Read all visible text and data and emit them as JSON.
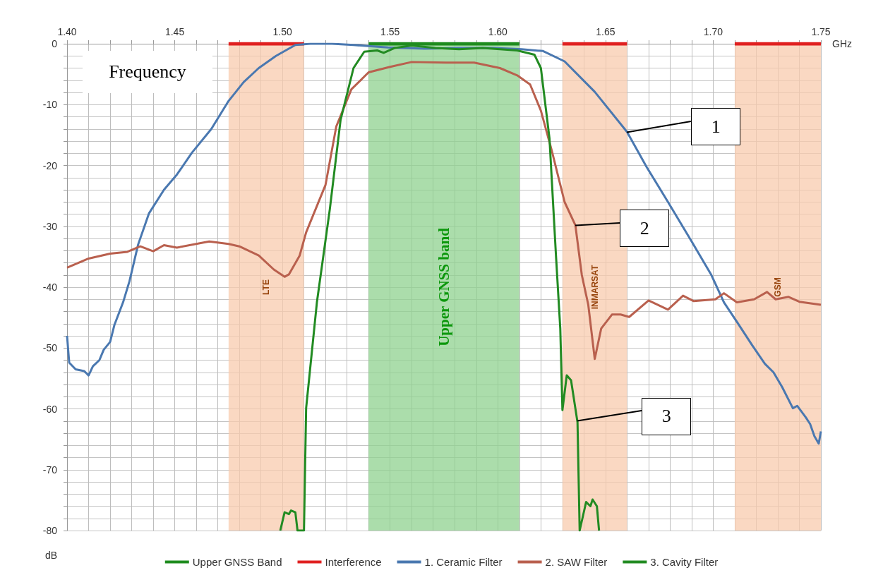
{
  "chart_data": {
    "type": "line",
    "xlabel": "GHz",
    "ylabel": "dB",
    "xlim": [
      1.4,
      1.75
    ],
    "ylim": [
      -80,
      0
    ],
    "xticks": [
      {
        "value": 1.4,
        "label": "1.40"
      },
      {
        "value": 1.41,
        "label": null
      },
      {
        "value": 1.42,
        "label": null
      },
      {
        "value": 1.43,
        "label": null
      },
      {
        "value": 1.44,
        "label": null
      },
      {
        "value": 1.45,
        "label": "1.45"
      },
      {
        "value": 1.46,
        "label": null
      },
      {
        "value": 1.47,
        "label": null
      },
      {
        "value": 1.48,
        "label": null
      },
      {
        "value": 1.49,
        "label": null
      },
      {
        "value": 1.5,
        "label": "1.50"
      },
      {
        "value": 1.51,
        "label": null
      },
      {
        "value": 1.52,
        "label": null
      },
      {
        "value": 1.53,
        "label": null
      },
      {
        "value": 1.54,
        "label": null
      },
      {
        "value": 1.55,
        "label": "1.55"
      },
      {
        "value": 1.56,
        "label": null
      },
      {
        "value": 1.57,
        "label": null
      },
      {
        "value": 1.58,
        "label": null
      },
      {
        "value": 1.59,
        "label": null
      },
      {
        "value": 1.6,
        "label": "1.60"
      },
      {
        "value": 1.61,
        "label": null
      },
      {
        "value": 1.62,
        "label": null
      },
      {
        "value": 1.63,
        "label": null
      },
      {
        "value": 1.64,
        "label": null
      },
      {
        "value": 1.65,
        "label": "1.65"
      },
      {
        "value": 1.66,
        "label": null
      },
      {
        "value": 1.67,
        "label": null
      },
      {
        "value": 1.68,
        "label": null
      },
      {
        "value": 1.69,
        "label": null
      },
      {
        "value": 1.7,
        "label": "1.70"
      },
      {
        "value": 1.71,
        "label": null
      },
      {
        "value": 1.72,
        "label": null
      },
      {
        "value": 1.73,
        "label": null
      },
      {
        "value": 1.74,
        "label": null
      },
      {
        "value": 1.75,
        "label": "1.75"
      }
    ],
    "yticks": [
      0,
      {
        "value": -2,
        "label": null
      },
      {
        "value": -4,
        "label": null
      },
      {
        "value": -6,
        "label": null
      },
      {
        "value": -8,
        "label": null
      },
      -10,
      {
        "value": -12,
        "label": null
      },
      {
        "value": -14,
        "label": null
      },
      {
        "value": -16,
        "label": null
      },
      {
        "value": -18,
        "label": null
      },
      -20,
      {
        "value": -22,
        "label": null
      },
      {
        "value": -24,
        "label": null
      },
      {
        "value": -26,
        "label": null
      },
      {
        "value": -28,
        "label": null
      },
      -30,
      {
        "value": -32,
        "label": null
      },
      {
        "value": -34,
        "label": null
      },
      {
        "value": -36,
        "label": null
      },
      {
        "value": -38,
        "label": null
      },
      -40,
      {
        "value": -42,
        "label": null
      },
      {
        "value": -44,
        "label": null
      },
      {
        "value": -46,
        "label": null
      },
      {
        "value": -48,
        "label": null
      },
      -50,
      {
        "value": -52,
        "label": null
      },
      {
        "value": -54,
        "label": null
      },
      {
        "value": -56,
        "label": null
      },
      {
        "value": -58,
        "label": null
      },
      -60,
      {
        "value": -62,
        "label": null
      },
      {
        "value": -64,
        "label": null
      },
      {
        "value": -66,
        "label": null
      },
      {
        "value": -68,
        "label": null
      },
      -70,
      {
        "value": -72,
        "label": null
      },
      {
        "value": -74,
        "label": null
      },
      {
        "value": -76,
        "label": null
      },
      {
        "value": -78,
        "label": null
      },
      -80
    ],
    "grid": true,
    "legend": "bottom",
    "bands": [
      {
        "axis": "x",
        "from": 1.475,
        "to": 1.51,
        "label": "LTE",
        "color": "#f8cbad"
      },
      {
        "axis": "x",
        "from": 1.54,
        "to": 1.61,
        "label": "Upper GNSS band",
        "color": "#8fd18f"
      },
      {
        "axis": "x",
        "from": 1.63,
        "to": 1.66,
        "label": "INMARSAT",
        "color": "#f8cbad"
      },
      {
        "axis": "x",
        "from": 1.71,
        "to": 1.75,
        "label": "GSM",
        "color": "#f8cbad"
      }
    ],
    "annotations": [
      "Frequency",
      {
        "text": "1",
        "x": 1.66,
        "y": -14.5
      },
      {
        "text": "2",
        "x": 1.636,
        "y": -29.8
      },
      {
        "text": "3",
        "x": 1.637,
        "y": -62
      }
    ],
    "series": [
      {
        "name": "Upper GNSS Band",
        "color": "#1e8c1e",
        "x": [
          1.54,
          1.61
        ],
        "values": [
          0,
          0
        ]
      },
      {
        "name": "Interference",
        "color": "#e02020",
        "x": [
          1.475,
          1.51
        ],
        "values": [
          0,
          0
        ]
      },
      {
        "color": "#e02020",
        "x": [
          1.63,
          1.66
        ],
        "values": [
          0,
          0
        ]
      },
      {
        "color": "#e02020",
        "x": [
          1.71,
          1.75
        ],
        "values": [
          0,
          0
        ]
      },
      {
        "name": "1. Ceramic Filter",
        "color": "#4a78b0",
        "x": [
          1.4,
          1.401,
          1.404,
          1.408,
          1.41,
          1.412,
          1.415,
          1.417,
          1.42,
          1.422,
          1.426,
          1.429,
          1.433,
          1.438,
          1.445,
          1.451,
          1.458,
          1.467,
          1.475,
          1.482,
          1.489,
          1.497,
          1.506,
          1.513,
          1.523,
          1.533,
          1.549,
          1.566,
          1.582,
          1.598,
          1.611,
          1.621,
          1.631,
          1.645,
          1.66,
          1.669,
          1.679,
          1.69,
          1.699,
          1.705,
          1.711,
          1.718,
          1.724,
          1.728,
          1.732,
          1.737,
          1.739,
          1.743,
          1.745,
          1.747,
          1.749,
          1.75
        ],
        "values": [
          -48,
          -52.4,
          -53.5,
          -53.8,
          -54.5,
          -53,
          -52,
          -50.3,
          -49,
          -46.2,
          -42.5,
          -39,
          -33,
          -27.9,
          -24,
          -21.5,
          -17.9,
          -14,
          -9.4,
          -6.3,
          -4,
          -2,
          -0.2,
          0,
          0,
          -0.2,
          -0.6,
          -0.8,
          -0.7,
          -0.7,
          -0.9,
          -1.2,
          -2.9,
          -7.9,
          -14.5,
          -20.2,
          -26,
          -32.5,
          -37.9,
          -42.5,
          -45.7,
          -49.5,
          -52.6,
          -54,
          -56.4,
          -59.9,
          -59.5,
          -61.4,
          -62.5,
          -64.5,
          -65.7,
          -63.7
        ]
      },
      {
        "name": "2. SAW Filter",
        "color": "#b9604e",
        "x": [
          1.4,
          1.41,
          1.42,
          1.428,
          1.434,
          1.44,
          1.445,
          1.451,
          1.466,
          1.475,
          1.48,
          1.489,
          1.496,
          1.501,
          1.503,
          1.508,
          1.511,
          1.52,
          1.525,
          1.532,
          1.54,
          1.55,
          1.56,
          1.576,
          1.589,
          1.601,
          1.609,
          1.615,
          1.62,
          1.625,
          1.631,
          1.636,
          1.639,
          1.642,
          1.645,
          1.648,
          1.653,
          1.657,
          1.661,
          1.67,
          1.679,
          1.686,
          1.691,
          1.701,
          1.705,
          1.711,
          1.719,
          1.725,
          1.729,
          1.735,
          1.74,
          1.75
        ],
        "values": [
          -36.8,
          -35.3,
          -34.5,
          -34.2,
          -33.3,
          -34.1,
          -33.1,
          -33.5,
          -32.5,
          -32.9,
          -33.3,
          -34.8,
          -37.1,
          -38.3,
          -37.9,
          -34.8,
          -31,
          -23.2,
          -13.6,
          -7.5,
          -4.7,
          -3.8,
          -3,
          -3.1,
          -3.1,
          -4,
          -5.2,
          -6.7,
          -11,
          -17.5,
          -26,
          -29.8,
          -38,
          -42.9,
          -51.8,
          -46.8,
          -44.5,
          -44.5,
          -44.9,
          -42.2,
          -43.7,
          -41.4,
          -42.3,
          -42,
          -41,
          -42.5,
          -42,
          -40.8,
          -42,
          -41.6,
          -42.4,
          -42.9
        ]
      },
      {
        "name": "3. Cavity Filter",
        "color": "#228b22",
        "x": [
          1.499,
          1.501,
          1.503,
          1.504,
          1.506,
          1.507,
          1.51,
          1.511,
          1.516,
          1.522,
          1.527,
          1.533,
          1.538,
          1.544,
          1.547,
          1.552,
          1.56,
          1.571,
          1.582,
          1.593,
          1.609,
          1.617,
          1.62,
          1.624,
          1.627,
          1.629,
          1.63,
          1.632,
          1.634,
          1.637,
          1.638,
          1.641,
          1.643,
          1.644,
          1.646,
          1.647
        ],
        "values": [
          -80,
          -77,
          -77.3,
          -76.7,
          -77,
          -80,
          -80,
          -59.9,
          -42.5,
          -27.2,
          -12.5,
          -4,
          -1.3,
          -1.1,
          -1.5,
          -0.7,
          -0.3,
          -0.7,
          -0.9,
          -0.7,
          -1.1,
          -1.8,
          -4,
          -15.6,
          -34.8,
          -46.8,
          -60.2,
          -54.5,
          -55.3,
          -62.2,
          -80,
          -75.3,
          -76,
          -74.9,
          -76,
          -80
        ]
      }
    ]
  }
}
